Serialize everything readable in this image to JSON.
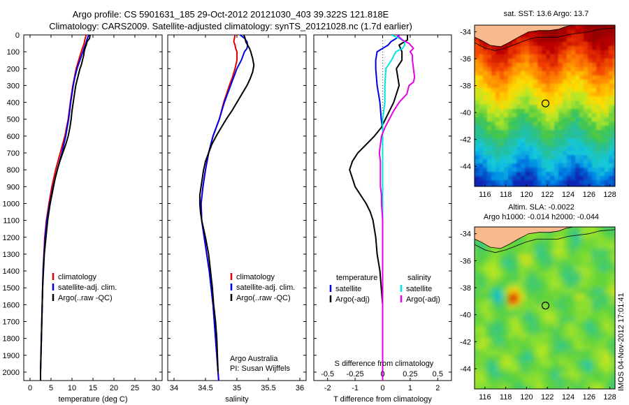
{
  "header": {
    "line1": "Argo profile: CS 5901631_185 29-Oct-2012 20121030_403 39.322S 121.818E",
    "line2": "Climatology: CARS2009. Satellite-adjusted climatology: synTS_20121028.nc (1.7d earlier)"
  },
  "side_caption": "IMOS 04-Nov-2012 17:01:41",
  "chart_data": [
    {
      "type": "line",
      "xlabel": "temperature (deg C)",
      "xticks": [
        0,
        5,
        10,
        15,
        20,
        25,
        30
      ],
      "xlim": [
        -1.5,
        31.5
      ],
      "yticks": [
        0,
        100,
        200,
        300,
        400,
        500,
        600,
        700,
        800,
        900,
        1000,
        1100,
        1200,
        1300,
        1400,
        1500,
        1600,
        1700,
        1800,
        1900,
        2000
      ],
      "ylim": [
        0,
        2050
      ],
      "legend": [
        "climatology",
        "satellite-adj. clim.",
        "Argo(..raw -QC)"
      ],
      "series": [
        {
          "name": "climatology",
          "color": "#e00000",
          "depth": [
            0,
            25,
            50,
            100,
            150,
            200,
            250,
            300,
            400,
            500,
            600,
            700,
            800,
            900,
            1000,
            1100,
            1200,
            1400,
            1600,
            1800,
            2000,
            2050
          ],
          "values": [
            13.4,
            13.1,
            12.9,
            12.2,
            11.6,
            11.0,
            10.6,
            10.2,
            9.6,
            9.1,
            8.3,
            7.2,
            6.1,
            5.2,
            4.5,
            3.9,
            3.5,
            3.1,
            2.9,
            2.7,
            2.5,
            2.5
          ]
        },
        {
          "name": "satellite-adj. clim.",
          "color": "#0000e6",
          "depth": [
            0,
            25,
            50,
            100,
            150,
            200,
            250,
            300,
            400,
            500,
            600,
            700,
            800,
            900,
            1000,
            1100,
            1200,
            1400,
            1600,
            1800,
            2000,
            2050
          ],
          "values": [
            14.0,
            13.6,
            13.3,
            12.6,
            11.9,
            11.2,
            10.7,
            10.3,
            9.7,
            9.2,
            8.5,
            7.6,
            6.5,
            5.5,
            4.7,
            4.0,
            3.6,
            3.1,
            2.9,
            2.7,
            2.5,
            2.5
          ]
        },
        {
          "name": "Argo(..raw -QC)",
          "color": "#000000",
          "depth": [
            0,
            20,
            40,
            60,
            80,
            100,
            120,
            140,
            160,
            180,
            200,
            250,
            300,
            350,
            400,
            450,
            500,
            550,
            600,
            650,
            700,
            750,
            800,
            850,
            900,
            950,
            1000,
            1050,
            1100,
            1150,
            1200,
            1300,
            1400,
            1500,
            1600,
            1700,
            1800,
            1900,
            2000,
            2050
          ],
          "values": [
            14.3,
            14.2,
            13.6,
            13.4,
            13.1,
            12.9,
            12.8,
            12.6,
            12.4,
            12.2,
            11.9,
            11.4,
            10.9,
            10.6,
            10.3,
            10.0,
            9.8,
            9.5,
            9.1,
            8.5,
            7.8,
            7.1,
            6.5,
            6.0,
            5.6,
            5.2,
            4.8,
            4.5,
            4.2,
            4.0,
            3.8,
            3.4,
            3.2,
            3.0,
            2.9,
            2.8,
            2.7,
            2.6,
            2.5,
            2.5
          ]
        }
      ]
    },
    {
      "type": "line",
      "xlabel": "salinity",
      "xticks": [
        34,
        34.5,
        35,
        35.5,
        36
      ],
      "xlim": [
        33.9,
        36.1
      ],
      "yticks": [
        0,
        100,
        200,
        300,
        400,
        500,
        600,
        700,
        800,
        900,
        1000,
        1100,
        1200,
        1300,
        1400,
        1500,
        1600,
        1700,
        1800,
        1900,
        2000
      ],
      "ylim": [
        0,
        2050
      ],
      "legend": [
        "climatology",
        "satellite-adj. clim.",
        "Argo(..raw -QC)"
      ],
      "annotation": [
        "Argo Australia",
        "PI: Susan Wijffels"
      ],
      "series": [
        {
          "name": "climatology",
          "color": "#e00000",
          "depth": [
            0,
            20,
            40,
            60,
            80,
            100,
            150,
            200,
            250,
            300,
            400,
            500,
            600,
            700,
            800,
            900,
            1000,
            1100,
            1200,
            1400,
            1600,
            1800,
            2000,
            2050
          ],
          "values": [
            34.97,
            34.96,
            34.95,
            34.97,
            34.98,
            35.0,
            35.0,
            34.97,
            34.93,
            34.88,
            34.79,
            34.72,
            34.62,
            34.55,
            34.5,
            34.46,
            34.43,
            34.44,
            34.48,
            34.56,
            34.62,
            34.66,
            34.7,
            34.71
          ]
        },
        {
          "name": "satellite-adj. clim.",
          "color": "#0000e6",
          "depth": [
            0,
            20,
            40,
            60,
            80,
            100,
            150,
            200,
            250,
            300,
            400,
            500,
            600,
            700,
            800,
            900,
            1000,
            1100,
            1200,
            1400,
            1600,
            1800,
            2000,
            2050
          ],
          "values": [
            35.05,
            35.12,
            35.16,
            35.17,
            35.16,
            35.12,
            35.07,
            35.0,
            34.95,
            34.9,
            34.8,
            34.72,
            34.62,
            34.55,
            34.5,
            34.46,
            34.43,
            34.44,
            34.48,
            34.56,
            34.62,
            34.66,
            34.7,
            34.71
          ]
        },
        {
          "name": "Argo(..raw -QC)",
          "color": "#000000",
          "depth": [
            0,
            20,
            40,
            60,
            80,
            100,
            140,
            180,
            220,
            260,
            300,
            350,
            400,
            450,
            500,
            550,
            600,
            650,
            700,
            750,
            800,
            850,
            900,
            950,
            1000,
            1050,
            1100,
            1150,
            1200,
            1300,
            1400,
            1500,
            1600,
            1700,
            1800,
            1900,
            2000
          ],
          "values": [
            35.11,
            35.13,
            35.14,
            35.17,
            35.2,
            35.22,
            35.25,
            35.27,
            35.25,
            35.21,
            35.16,
            35.08,
            35.0,
            34.92,
            34.83,
            34.75,
            34.67,
            34.6,
            34.55,
            34.5,
            34.47,
            34.45,
            34.43,
            34.41,
            34.41,
            34.42,
            34.44,
            34.47,
            34.5,
            34.55,
            34.58,
            34.61,
            34.63,
            34.66,
            34.68,
            34.69,
            34.7
          ]
        }
      ]
    },
    {
      "type": "line",
      "xlabel": "T difference from climatology",
      "top_xlabel": "S difference from climatology",
      "xticks": [
        -2,
        -1,
        0,
        1,
        2
      ],
      "xlim": [
        -2.5,
        2.5
      ],
      "top_xticks": [
        "-0.5",
        "-0.25",
        "0",
        "0.25",
        "0.5"
      ],
      "yticks": [
        0,
        100,
        200,
        300,
        400,
        500,
        600,
        700,
        800,
        900,
        1000,
        1100,
        1200,
        1300,
        1400,
        1500,
        1600,
        1700,
        1800,
        1900,
        2000
      ],
      "ylim": [
        0,
        2050
      ],
      "legend_left_title": "temperature",
      "legend_left": [
        "satellite",
        "Argo(-adj)"
      ],
      "legend_right_title": "salinity",
      "legend_right": [
        "satellite",
        "Argo(-adj)"
      ],
      "series": [
        {
          "name": "temperature satellite",
          "color": "#0000e6",
          "depth": [
            0,
            20,
            40,
            60,
            80,
            100,
            150,
            200,
            300,
            400,
            500,
            560,
            600,
            800,
            1000,
            1500,
            2050
          ],
          "values": [
            0.6,
            0.5,
            0.3,
            0.2,
            0.0,
            -0.2,
            -0.25,
            -0.25,
            -0.2,
            -0.1,
            -0.05,
            0.0,
            0.0,
            0.0,
            0.0,
            0.0,
            0.0
          ]
        },
        {
          "name": "temperature Argo(-adj)",
          "color": "#000000",
          "depth": [
            0,
            30,
            60,
            100,
            150,
            200,
            300,
            400,
            500,
            550,
            600,
            650,
            700,
            750,
            800,
            850,
            900,
            950,
            1000,
            1050,
            1100,
            1200,
            1300,
            1400,
            1500,
            1600,
            1800,
            2000,
            2050
          ],
          "values": [
            0.9,
            0.9,
            0.6,
            0.7,
            0.7,
            0.5,
            0.6,
            0.4,
            0.1,
            -0.05,
            -0.3,
            -0.6,
            -0.9,
            -1.1,
            -1.2,
            -1.1,
            -1.0,
            -0.8,
            -0.6,
            -0.45,
            -0.35,
            -0.25,
            -0.2,
            -0.1,
            -0.05,
            0.0,
            0.0,
            0.0,
            0.0
          ]
        },
        {
          "name": "salinity satellite",
          "color": "#00e6e6",
          "depth": [
            0,
            20,
            40,
            60,
            80,
            100,
            150,
            200,
            300,
            400,
            500,
            600,
            800,
            1000,
            1500,
            2050
          ],
          "values": [
            0.08,
            0.15,
            0.2,
            0.2,
            0.18,
            0.12,
            0.08,
            0.03,
            0.02,
            0.02,
            0.0,
            0.0,
            0.0,
            0.0,
            0.0,
            0.0
          ]
        },
        {
          "name": "salinity Argo(-adj)",
          "color": "#e600e6",
          "depth": [
            0,
            30,
            50,
            80,
            100,
            120,
            150,
            200,
            250,
            280,
            300,
            350,
            400,
            450,
            500,
            550,
            600,
            650,
            700,
            750,
            800,
            850,
            900,
            950,
            1000,
            1100,
            1200,
            1300,
            1400,
            1500,
            1600,
            1800,
            2050
          ],
          "values": [
            0.13,
            0.18,
            0.24,
            0.28,
            0.25,
            0.27,
            0.27,
            0.28,
            0.29,
            0.28,
            0.24,
            0.22,
            0.15,
            0.1,
            0.06,
            0.02,
            -0.01,
            -0.02,
            -0.03,
            -0.02,
            -0.02,
            -0.02,
            -0.02,
            -0.01,
            -0.01,
            0.0,
            0.0,
            0.0,
            0.0,
            0.0,
            0.0,
            0.0,
            0.0
          ]
        }
      ]
    },
    {
      "type": "heatmap",
      "title": "sat. SST: 13.6 Argo: 13.7",
      "xticks": [
        116,
        118,
        120,
        122,
        124,
        126,
        128
      ],
      "yticks": [
        -34,
        -36,
        -38,
        -40,
        -42,
        -44
      ],
      "xlim": [
        115,
        128.5
      ],
      "ylim": [
        -45.5,
        -33.5
      ],
      "marker": {
        "lon": 121.818,
        "lat": -39.322
      }
    },
    {
      "type": "heatmap",
      "title": "Altim. SLA: -0.0022",
      "subtitle": "Argo h1000: -0.014 h2000: -0.044",
      "xticks": [
        116,
        118,
        120,
        122,
        124,
        126,
        128
      ],
      "yticks": [
        -34,
        -36,
        -38,
        -40,
        -42,
        -44
      ],
      "xlim": [
        115,
        128.5
      ],
      "ylim": [
        -45.5,
        -33.5
      ],
      "marker": {
        "lon": 121.818,
        "lat": -39.322
      }
    }
  ]
}
